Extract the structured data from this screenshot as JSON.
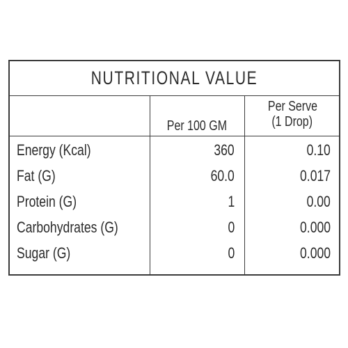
{
  "table": {
    "title": "NUTRITIONAL VALUE",
    "headers": {
      "nutrient": "",
      "per_100": "Per 100 GM",
      "per_serve_line1": "Per Serve",
      "per_serve_line2": "(1 Drop)"
    },
    "rows": [
      {
        "name": "Energy (Kcal)",
        "per_100": "360",
        "per_serve": "0.10"
      },
      {
        "name": "Fat (G)",
        "per_100": "60.0",
        "per_serve": "0.017"
      },
      {
        "name": "Protein (G)",
        "per_100": "1",
        "per_serve": "0.00"
      },
      {
        "name": "Carbohydrates (G)",
        "per_100": "0",
        "per_serve": "0.000"
      },
      {
        "name": "Sugar (G)",
        "per_100": "0",
        "per_serve": "0.000"
      }
    ]
  }
}
